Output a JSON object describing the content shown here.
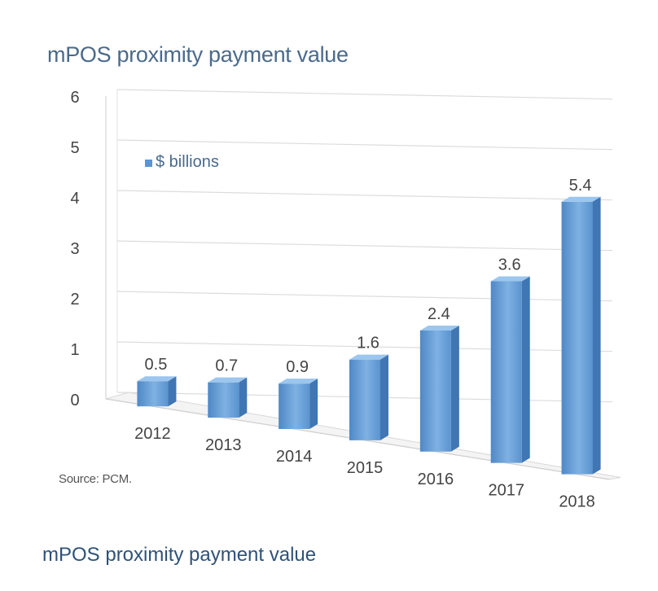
{
  "title": "mPOS proximity payment value",
  "source": "Source: PCM.",
  "caption": "mPOS proximity payment value",
  "colors": {
    "bar": "#5b95d3",
    "title": "#4a6a8c",
    "caption": "#2f5278"
  },
  "chart_data": {
    "type": "bar",
    "title": "mPOS proximity payment value",
    "categories": [
      "2012",
      "2013",
      "2014",
      "2015",
      "2016",
      "2017",
      "2018"
    ],
    "series": [
      {
        "name": "$ billions",
        "values": [
          0.5,
          0.7,
          0.9,
          1.6,
          2.4,
          3.6,
          5.4
        ]
      }
    ],
    "value_labels": [
      "0.5",
      "0.7",
      "0.9",
      "1.6",
      "2.4",
      "3.6",
      "5.4"
    ],
    "yticks": [
      "0",
      "1",
      "2",
      "3",
      "4",
      "5",
      "6"
    ],
    "ylim": [
      0,
      6
    ],
    "grid": true,
    "legend_position": "top-left",
    "style": "3d"
  }
}
